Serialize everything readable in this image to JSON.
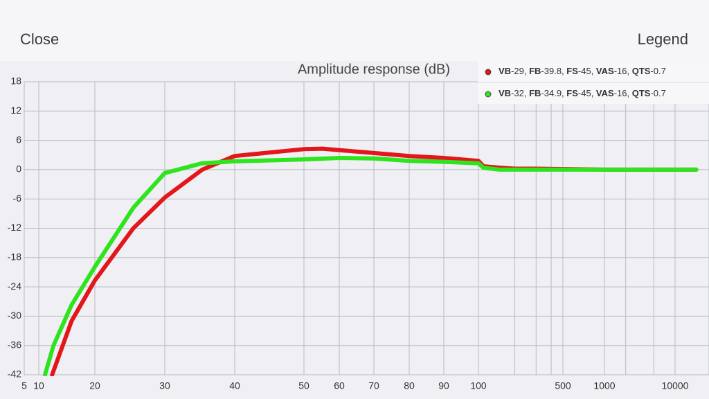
{
  "header": {
    "left_button": "Close",
    "right_button": "Legend"
  },
  "chart_data": {
    "type": "line",
    "title": "Amplitude response (dB)",
    "series": [
      {
        "name": "VB-29, FB-39.8, FS-45, VAS-16, QTS-0.7",
        "color": "#e3161b",
        "x": [
          11.8,
          15,
          20,
          25,
          30,
          35,
          40,
          50,
          55,
          60,
          70,
          80,
          90,
          100,
          110,
          150,
          200,
          300,
          1000,
          10000,
          20000
        ],
        "values": [
          -42,
          -31,
          -22.7,
          -12,
          -5.7,
          0,
          2.8,
          4.2,
          4.3,
          4,
          3.4,
          2.8,
          2.4,
          1.8,
          0.7,
          0.4,
          0.2,
          0.2,
          0,
          0,
          0
        ]
      },
      {
        "name": "VB-32, FB-34.9, FS-45, VAS-16, QTS-0.7",
        "color": "#2fe41f",
        "x": [
          10.8,
          12,
          15,
          20,
          25,
          30,
          35,
          40,
          50,
          60,
          70,
          80,
          90,
          100,
          110,
          150,
          500,
          1000,
          10000,
          20000
        ],
        "values": [
          -42,
          -36,
          -27.7,
          -19.9,
          -7.8,
          -0.7,
          1.3,
          1.7,
          2.1,
          2.4,
          2.3,
          1.8,
          1.6,
          1.3,
          0.4,
          0,
          0,
          0,
          0,
          0
        ]
      }
    ],
    "xlim": [
      5,
      20000
    ],
    "xticks": [
      5,
      10,
      20,
      30,
      40,
      50,
      60,
      70,
      80,
      90,
      100,
      500,
      1000,
      10000
    ],
    "xminorticks": [
      200,
      300,
      400,
      2000,
      5000
    ],
    "ylim": [
      -42,
      18
    ],
    "yticks": [
      18,
      12,
      6,
      0,
      -6,
      -12,
      -18,
      -24,
      -30,
      -36,
      -42
    ],
    "grid": true
  }
}
